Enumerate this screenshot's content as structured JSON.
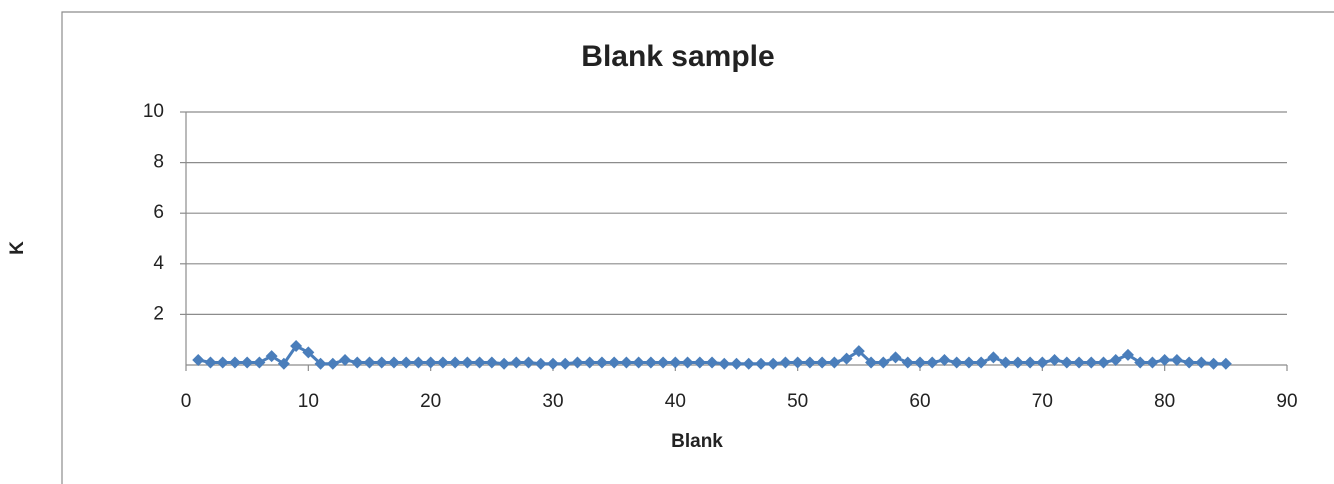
{
  "chart_data": {
    "type": "line",
    "title": "Blank sample",
    "x_label": "Blank",
    "y_label": "K",
    "x": [
      1,
      2,
      3,
      4,
      5,
      6,
      7,
      8,
      9,
      10,
      11,
      12,
      13,
      14,
      15,
      16,
      17,
      18,
      19,
      20,
      21,
      22,
      23,
      24,
      25,
      26,
      27,
      28,
      29,
      30,
      31,
      32,
      33,
      34,
      35,
      36,
      37,
      38,
      39,
      40,
      41,
      42,
      43,
      44,
      45,
      46,
      47,
      48,
      49,
      50,
      51,
      52,
      53,
      54,
      55,
      56,
      57,
      58,
      59,
      60,
      61,
      62,
      63,
      64,
      65,
      66,
      67,
      68,
      69,
      70,
      71,
      72,
      73,
      74,
      75,
      76,
      77,
      78,
      79,
      80,
      81,
      82,
      83,
      84,
      85
    ],
    "values": [
      0.2,
      0.1,
      0.1,
      0.1,
      0.1,
      0.1,
      0.35,
      0.05,
      0.75,
      0.5,
      0.05,
      0.05,
      0.2,
      0.1,
      0.1,
      0.1,
      0.1,
      0.1,
      0.1,
      0.1,
      0.1,
      0.1,
      0.1,
      0.1,
      0.1,
      0.05,
      0.1,
      0.1,
      0.05,
      0.05,
      0.05,
      0.1,
      0.1,
      0.1,
      0.1,
      0.1,
      0.1,
      0.1,
      0.1,
      0.1,
      0.1,
      0.1,
      0.1,
      0.05,
      0.05,
      0.05,
      0.05,
      0.05,
      0.1,
      0.1,
      0.1,
      0.1,
      0.1,
      0.25,
      0.55,
      0.1,
      0.1,
      0.3,
      0.1,
      0.1,
      0.1,
      0.2,
      0.1,
      0.1,
      0.1,
      0.3,
      0.1,
      0.1,
      0.1,
      0.1,
      0.2,
      0.1,
      0.1,
      0.1,
      0.1,
      0.2,
      0.4,
      0.1,
      0.1,
      0.2,
      0.2,
      0.1,
      0.1,
      0.05,
      0.05
    ],
    "color": "#4a7ebb",
    "xlim": [
      0,
      90
    ],
    "xticks": [
      0,
      10,
      20,
      30,
      40,
      50,
      60,
      70,
      80,
      90
    ],
    "ylim": [
      0,
      10
    ],
    "yticks": [
      2,
      4,
      6,
      8,
      10
    ],
    "grid": true
  }
}
